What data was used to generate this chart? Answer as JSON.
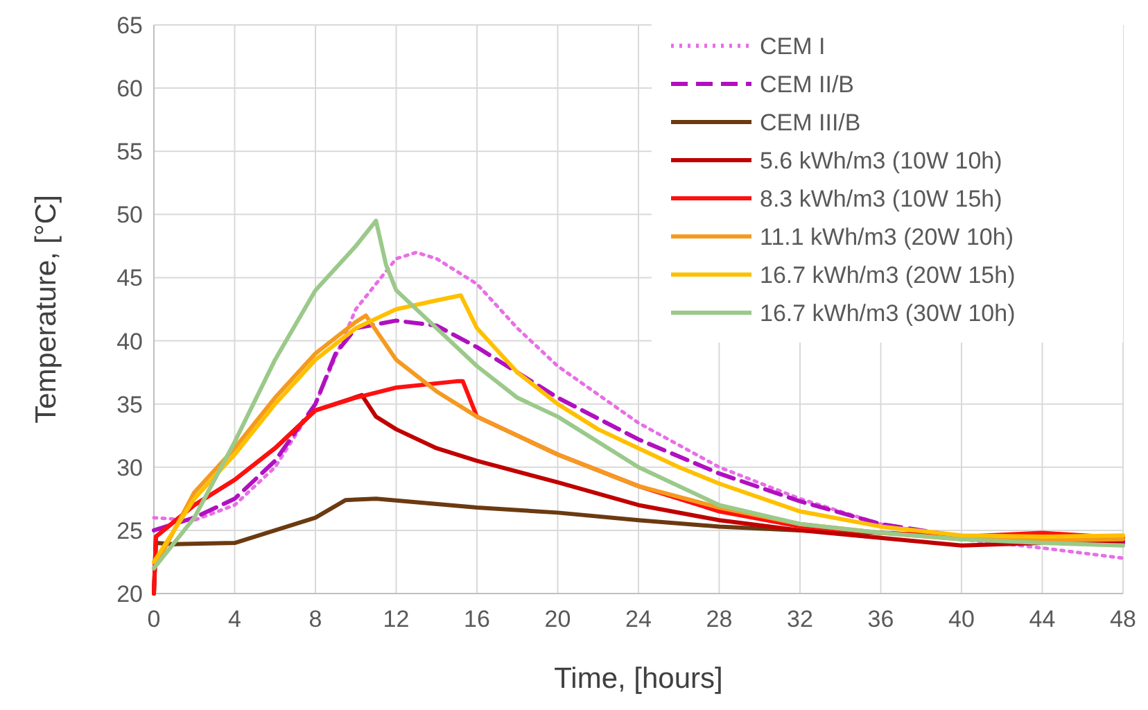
{
  "chart_data": {
    "type": "line",
    "xlabel": "Time, [hours]",
    "ylabel": "Temperature, [°C]",
    "xlim": [
      0,
      48
    ],
    "xticks": [
      0,
      4,
      8,
      12,
      16,
      20,
      24,
      28,
      32,
      36,
      40,
      44,
      48
    ],
    "ylim": [
      20,
      65
    ],
    "yticks": [
      20,
      25,
      30,
      35,
      40,
      45,
      50,
      55,
      60,
      65
    ],
    "grid": true,
    "legend": "top right",
    "series": [
      {
        "name": "CEM I",
        "color": "#e86ee8",
        "line_style": "dotted",
        "x": [
          0,
          2,
          4,
          6,
          8,
          10,
          12,
          13,
          14,
          16,
          18,
          20,
          24,
          28,
          32,
          36,
          40,
          44,
          48
        ],
        "values": [
          26,
          25.8,
          27,
          30,
          35,
          42.5,
          46.5,
          47,
          46.5,
          44.5,
          41,
          38,
          33.5,
          30,
          27.5,
          25.5,
          24.3,
          23.6,
          22.8
        ]
      },
      {
        "name": "CEM II/B",
        "color": "#b010c0",
        "line_style": "dashed",
        "x": [
          0,
          2,
          4,
          6,
          8,
          9,
          10,
          12,
          14,
          16,
          20,
          24,
          28,
          32,
          36,
          40,
          44,
          48
        ],
        "values": [
          25,
          26,
          27.5,
          30.5,
          35,
          39,
          41,
          41.6,
          41.2,
          39.5,
          35.5,
          32.2,
          29.5,
          27.3,
          25.5,
          24.5,
          24,
          24
        ]
      },
      {
        "name": "CEM III/B",
        "color": "#6b3a10",
        "line_style": "solid",
        "x": [
          0,
          0.1,
          1,
          4,
          6,
          8,
          9.5,
          11,
          16,
          20,
          24,
          28,
          32,
          36,
          40,
          44,
          48
        ],
        "values": [
          20,
          24,
          23.9,
          24,
          25,
          26,
          27.4,
          27.5,
          26.8,
          26.4,
          25.8,
          25.3,
          25,
          24.8,
          24.5,
          24.4,
          24.2
        ]
      },
      {
        "name": "5.6 kWh/m3 (10W 10h)",
        "color": "#c00000",
        "line_style": "solid",
        "x": [
          0,
          0.1,
          2,
          4,
          6,
          8,
          10.3,
          11,
          12,
          14,
          16,
          20,
          24,
          28,
          32,
          36,
          40,
          44,
          48
        ],
        "values": [
          20,
          24.5,
          27,
          29,
          31.5,
          34.5,
          35.7,
          34,
          33,
          31.5,
          30.5,
          28.8,
          27,
          25.8,
          25,
          24.4,
          23.8,
          24,
          24.2
        ]
      },
      {
        "name": "8.3 kWh/m3 (10W 15h)",
        "color": "#ff1010",
        "line_style": "solid",
        "x": [
          0,
          0.1,
          2,
          4,
          6,
          8,
          10,
          12,
          15,
          15.3,
          16,
          20,
          24,
          28,
          32,
          36,
          40,
          44,
          48
        ],
        "values": [
          20,
          24.5,
          27,
          29,
          31.5,
          34.5,
          35.5,
          36.3,
          36.8,
          36.8,
          34,
          31,
          28.5,
          26.5,
          25.3,
          24.8,
          24.5,
          24.8,
          24.4
        ]
      },
      {
        "name": "11.1 kWh/m3 (20W 10h)",
        "color": "#f59a20",
        "line_style": "solid",
        "x": [
          0,
          1,
          2,
          4,
          6,
          8,
          10,
          10.5,
          12,
          14,
          16,
          20,
          24,
          28,
          32,
          36,
          40,
          44,
          48
        ],
        "values": [
          22,
          25,
          28,
          31.5,
          35.5,
          39,
          41.5,
          42,
          38.5,
          36,
          34,
          31,
          28.5,
          26.8,
          25.5,
          24.8,
          24.3,
          24.2,
          24.3
        ]
      },
      {
        "name": "16.7 kWh/m3 (20W 15h)",
        "color": "#ffc000",
        "line_style": "solid",
        "x": [
          0,
          2,
          4,
          6,
          8,
          10,
          12,
          14,
          15.2,
          16,
          18,
          20,
          22,
          24,
          26,
          28,
          32,
          36,
          40,
          44,
          48
        ],
        "values": [
          22.5,
          27.5,
          31,
          35,
          38.5,
          41,
          42.5,
          43.2,
          43.6,
          41,
          37.5,
          35,
          33,
          31.5,
          30,
          28.7,
          26.5,
          25.3,
          24.6,
          24.5,
          24.6
        ]
      },
      {
        "name": "16.7 kWh/m3 (30W 10h)",
        "color": "#9bc98a",
        "line_style": "solid",
        "x": [
          0,
          2,
          4,
          6,
          8,
          10,
          11,
          11.5,
          12,
          14,
          16,
          18,
          20,
          24,
          28,
          32,
          36,
          40,
          44,
          48
        ],
        "values": [
          22,
          26,
          32,
          38.5,
          44,
          47.5,
          49.5,
          46,
          44,
          41,
          38,
          35.5,
          34,
          30,
          27,
          25.5,
          24.8,
          24.3,
          24,
          23.8
        ]
      }
    ]
  }
}
